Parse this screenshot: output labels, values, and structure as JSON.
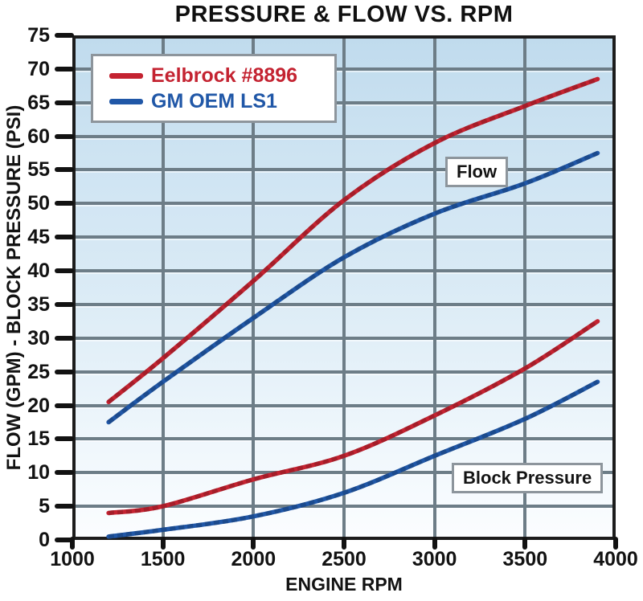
{
  "title": "PRESSURE & FLOW VS. RPM",
  "axes": {
    "x_label": "ENGINE RPM",
    "y_label": "FLOW (GPM) - BLOCK PRESSURE (PSI)",
    "x_ticks": [
      1000,
      1500,
      2000,
      2500,
      3000,
      3500,
      4000
    ],
    "y_ticks": [
      75,
      70,
      65,
      60,
      55,
      50,
      45,
      40,
      35,
      30,
      25,
      20,
      15,
      10,
      5,
      0
    ]
  },
  "legend": {
    "items": [
      {
        "label": "Eelbrock #8896",
        "color": "#c42331"
      },
      {
        "label": "GM OEM LS1",
        "color": "#2057a7"
      }
    ]
  },
  "annotations": {
    "flow_label": "Flow",
    "block_pressure_label": "Block Pressure"
  },
  "colors": {
    "red_series": "#c42331",
    "blue_series": "#2057a7",
    "grid": "#6d7d87",
    "axis": "#1c1c1c",
    "plot_bg_top": "#c0dbed",
    "plot_bg_bottom": "#fbfdff"
  },
  "chart_data": {
    "type": "line",
    "title": "PRESSURE & FLOW VS. RPM",
    "xlabel": "ENGINE RPM",
    "ylabel": "FLOW (GPM) - BLOCK PRESSURE (PSI)",
    "xlim": [
      1000,
      4000
    ],
    "ylim": [
      0,
      75
    ],
    "x_tick_step": 500,
    "y_tick_step": 5,
    "grid": true,
    "legend_position": "top-left",
    "x": [
      1200,
      1500,
      2000,
      2500,
      3000,
      3500,
      3900
    ],
    "series": [
      {
        "name": "Eelbrock #8896 Flow",
        "group": "Flow",
        "color": "#c42331",
        "values": [
          20.5,
          27,
          38.5,
          50.5,
          59,
          64.5,
          68.5
        ]
      },
      {
        "name": "GM OEM LS1 Flow",
        "group": "Flow",
        "color": "#2057a7",
        "values": [
          17.5,
          23.5,
          33,
          42,
          48.5,
          53,
          57.5
        ]
      },
      {
        "name": "Eelbrock #8896 Block Pressure",
        "group": "Block Pressure",
        "color": "#c42331",
        "values": [
          4,
          5,
          9,
          12.5,
          18.5,
          25.5,
          32.5
        ]
      },
      {
        "name": "GM OEM LS1 Block Pressure",
        "group": "Block Pressure",
        "color": "#2057a7",
        "values": [
          0.5,
          1.5,
          3.5,
          7,
          12.5,
          18,
          23.5
        ]
      }
    ]
  }
}
